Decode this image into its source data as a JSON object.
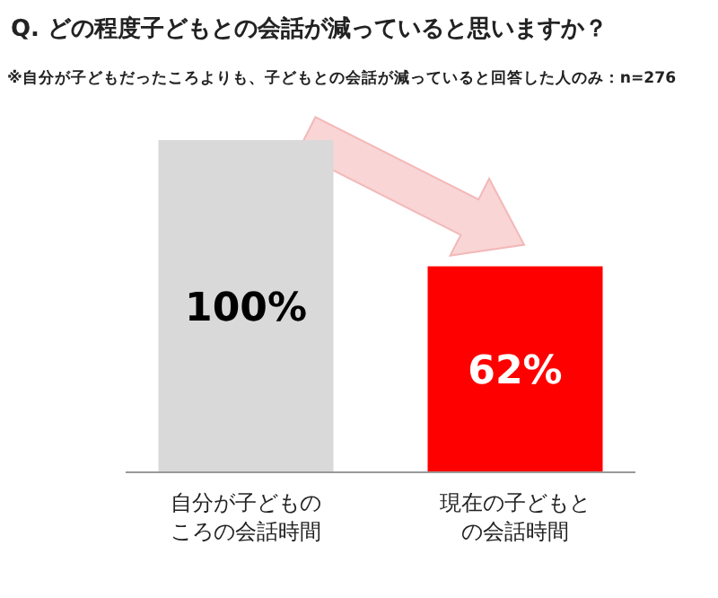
{
  "chart_data": {
    "type": "bar",
    "title": "Q. どの程度子どもとの会話が減っていると思いますか？",
    "subtitle": "※自分が子どもだったころよりも、子どもとの会話が減っていると回答した人のみ：n=276",
    "categories": [
      "自分が子どものころの会話時間",
      "現在の子どもとの会話時間"
    ],
    "values": [
      100,
      62
    ],
    "colors": [
      "#d9d9d9",
      "#ff0000"
    ],
    "value_labels": [
      "100%",
      "62%"
    ]
  }
}
